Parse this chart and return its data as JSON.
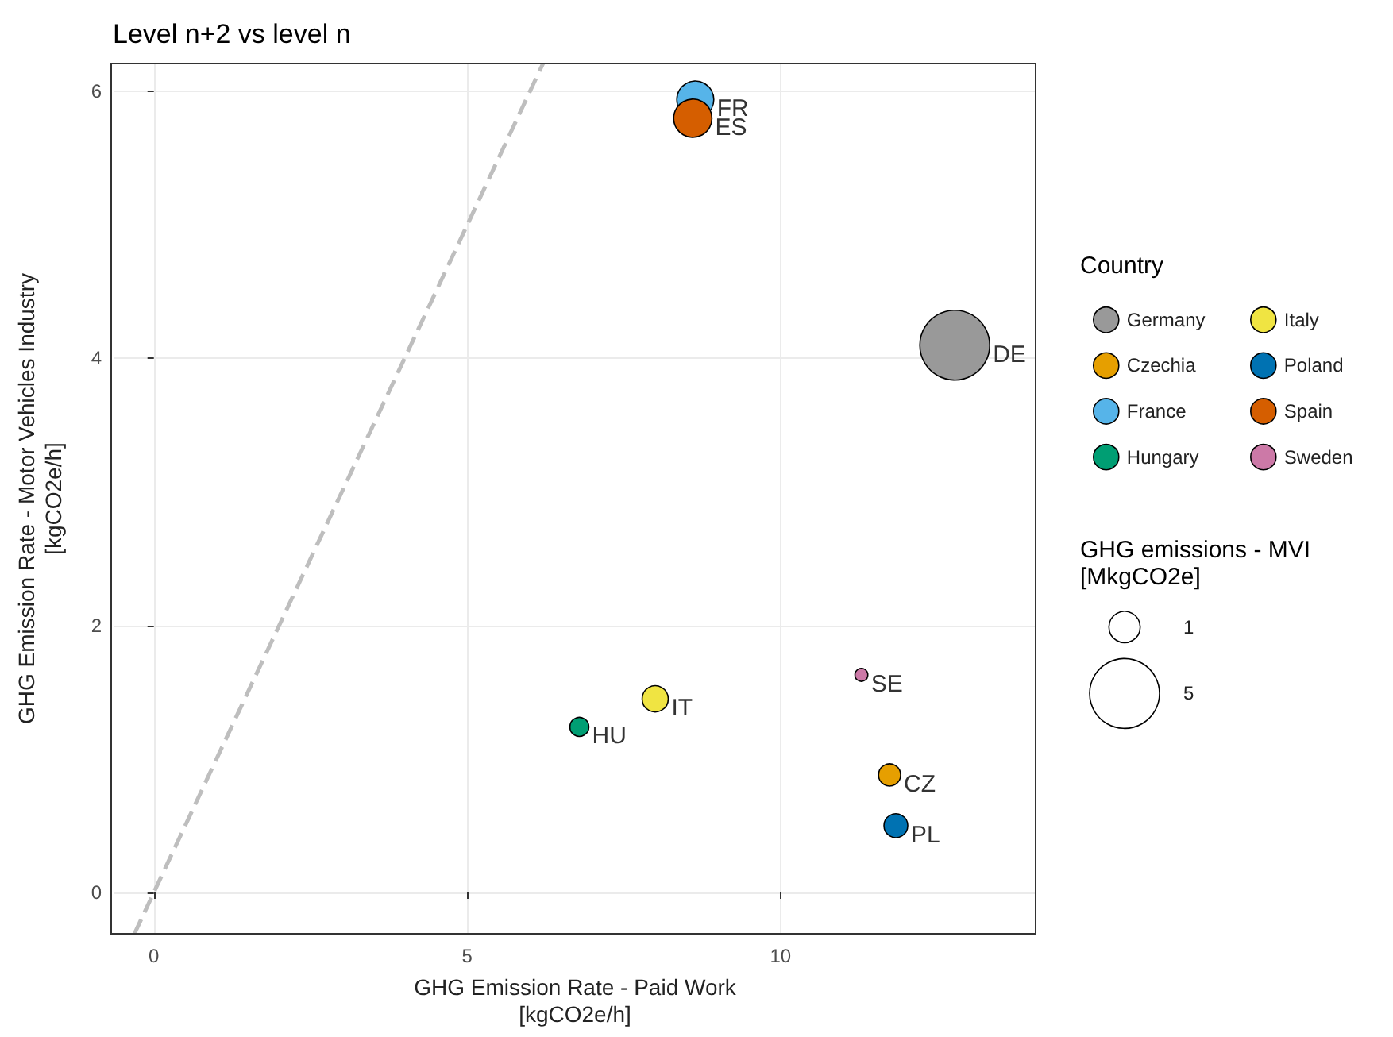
{
  "chart_data": {
    "type": "bubble",
    "title": "Level n+2 vs level n",
    "xlabel": "GHG Emission Rate - Paid Work\n[kgCO2e/h]",
    "ylabel": "GHG Emission Rate - Motor Vehicles Industry\n[kgCO2e/h]",
    "legend_title": "Country",
    "size_legend": [
      1,
      5
    ],
    "xlim": [
      -0.63,
      14.07
    ],
    "ylim": [
      -0.31,
      6.21
    ],
    "xticks": [
      0,
      5,
      10
    ],
    "yticks": [
      0,
      2,
      4,
      6
    ],
    "grid": true,
    "legend": "right",
    "marker": "circle",
    "series": [
      {
        "name": "Germany",
        "color": "#999999",
        "x": [
          12.78
        ],
        "values": [
          4.1
        ],
        "sizes": [
          5
        ]
      },
      {
        "name": "Czechia",
        "color": "#e69f00",
        "x": [
          11.74
        ],
        "values": [
          0.88
        ],
        "sizes": [
          0.5
        ]
      },
      {
        "name": "France",
        "color": "#56b4e9",
        "x": [
          8.64
        ],
        "values": [
          5.94
        ],
        "sizes": [
          1.4
        ]
      },
      {
        "name": "Hungary",
        "color": "#009e73",
        "x": [
          6.79
        ],
        "values": [
          1.24
        ],
        "sizes": [
          0.37
        ]
      },
      {
        "name": "Italy",
        "color": "#f0e442",
        "x": [
          8.0
        ],
        "values": [
          1.45
        ],
        "sizes": [
          0.7
        ]
      },
      {
        "name": "Poland",
        "color": "#0072b2",
        "x": [
          11.84
        ],
        "values": [
          0.5
        ],
        "sizes": [
          0.58
        ]
      },
      {
        "name": "Spain",
        "color": "#d55e00",
        "x": [
          8.6
        ],
        "values": [
          5.8
        ],
        "sizes": [
          1.5
        ]
      },
      {
        "name": "Sweden",
        "color": "#cc79a7",
        "x": [
          11.29
        ],
        "values": [
          1.63
        ],
        "sizes": [
          0.17
        ]
      },
      {
        "type": "line",
        "color": "#bebebe",
        "line_style": "dashed",
        "marker": "none",
        "x": [
          -0.31,
          6.21
        ],
        "values": [
          -0.31,
          6.21
        ]
      }
    ],
    "annotations": [
      "GHG emissions - MVI\n[MkgCO2e]",
      {
        "text": "DE",
        "x": 12.78,
        "y": 4.1
      },
      {
        "text": "CZ",
        "x": 11.74,
        "y": 0.88
      },
      {
        "text": "FR",
        "x": 8.64,
        "y": 5.94
      },
      {
        "text": "HU",
        "x": 6.79,
        "y": 1.24
      },
      {
        "text": "IT",
        "x": 8.0,
        "y": 1.45
      },
      {
        "text": "PL",
        "x": 11.84,
        "y": 0.5
      },
      {
        "text": "ES",
        "x": 8.6,
        "y": 5.8
      },
      {
        "text": "SE",
        "x": 11.29,
        "y": 1.63
      }
    ]
  }
}
